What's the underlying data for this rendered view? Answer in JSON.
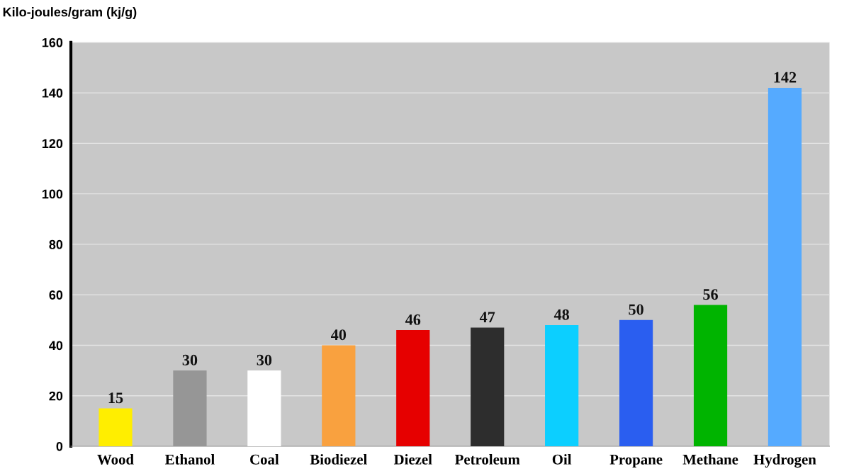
{
  "chart_data": {
    "type": "bar",
    "ylabel": "Kilo-joules/gram (kj/g)",
    "categories": [
      "Wood",
      "Ethanol",
      "Coal",
      "Biodiezel",
      "Diezel",
      "Petroleum",
      "Oil",
      "Propane",
      "Methane",
      "Hydrogen"
    ],
    "values": [
      15,
      30,
      30,
      40,
      46,
      47,
      48,
      50,
      56,
      142
    ],
    "colors": [
      "#ffee00",
      "#969696",
      "#ffffff",
      "#f9a13f",
      "#e60000",
      "#2d2d2d",
      "#0ccfff",
      "#2a5ef0",
      "#00b400",
      "#55aaff"
    ],
    "ylim": [
      0,
      160
    ],
    "yticks": [
      0,
      20,
      40,
      60,
      80,
      100,
      120,
      140,
      160
    ],
    "grid": "y",
    "data_labels": true
  }
}
